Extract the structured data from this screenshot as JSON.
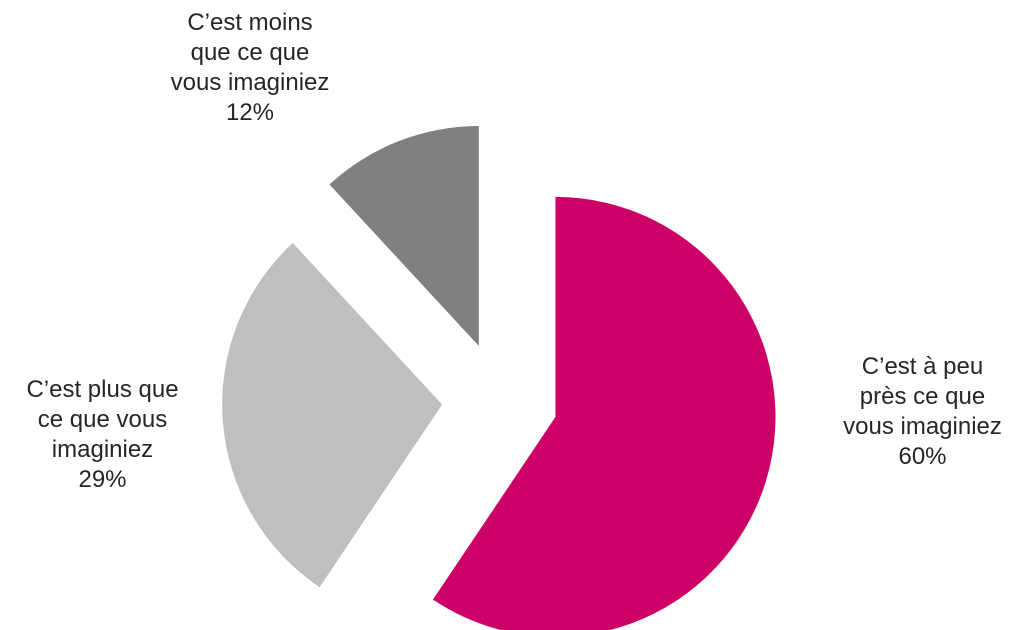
{
  "chart_data": {
    "type": "pie",
    "exploded": true,
    "slices": [
      {
        "label_lines": [
          "C’est à peu",
          "près ce que",
          "vous imaginiez"
        ],
        "value": 60,
        "value_label": "60%",
        "color": "#CC0066"
      },
      {
        "label_lines": [
          "C’est plus que",
          "ce que vous",
          "imaginiez"
        ],
        "value": 29,
        "value_label": "29%",
        "color": "#BFBFBF"
      },
      {
        "label_lines": [
          "C’est moins",
          "que ce que",
          "vous imaginiez"
        ],
        "value": 12,
        "value_label": "12%",
        "color": "#808080"
      }
    ]
  }
}
